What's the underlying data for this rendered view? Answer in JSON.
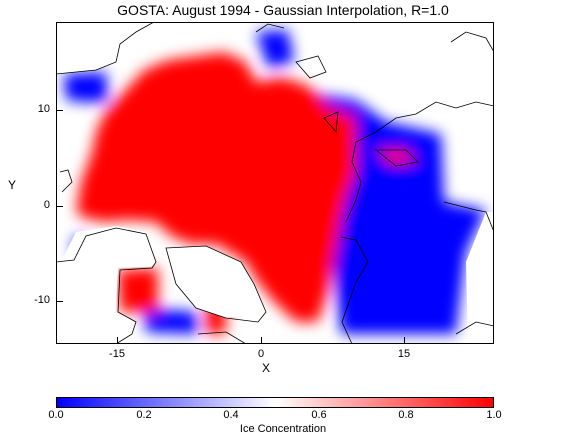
{
  "title": "GOSTA: August 1994 - Gaussian Interpolation, R=1.0",
  "map": {
    "x_axis": {
      "label": "X",
      "ticks": [
        "-15",
        "0",
        "15"
      ]
    },
    "y_axis": {
      "label": "Y",
      "ticks": [
        "10",
        "0",
        "-10"
      ]
    }
  },
  "colorbar": {
    "label": "Ice Concentration",
    "ticks": [
      "0.0",
      "0.2",
      "0.4",
      "0.6",
      "0.8",
      "1.0"
    ],
    "low_color": "#0000ff",
    "mid_color": "#ffffff",
    "high_color": "#ff0000"
  }
}
